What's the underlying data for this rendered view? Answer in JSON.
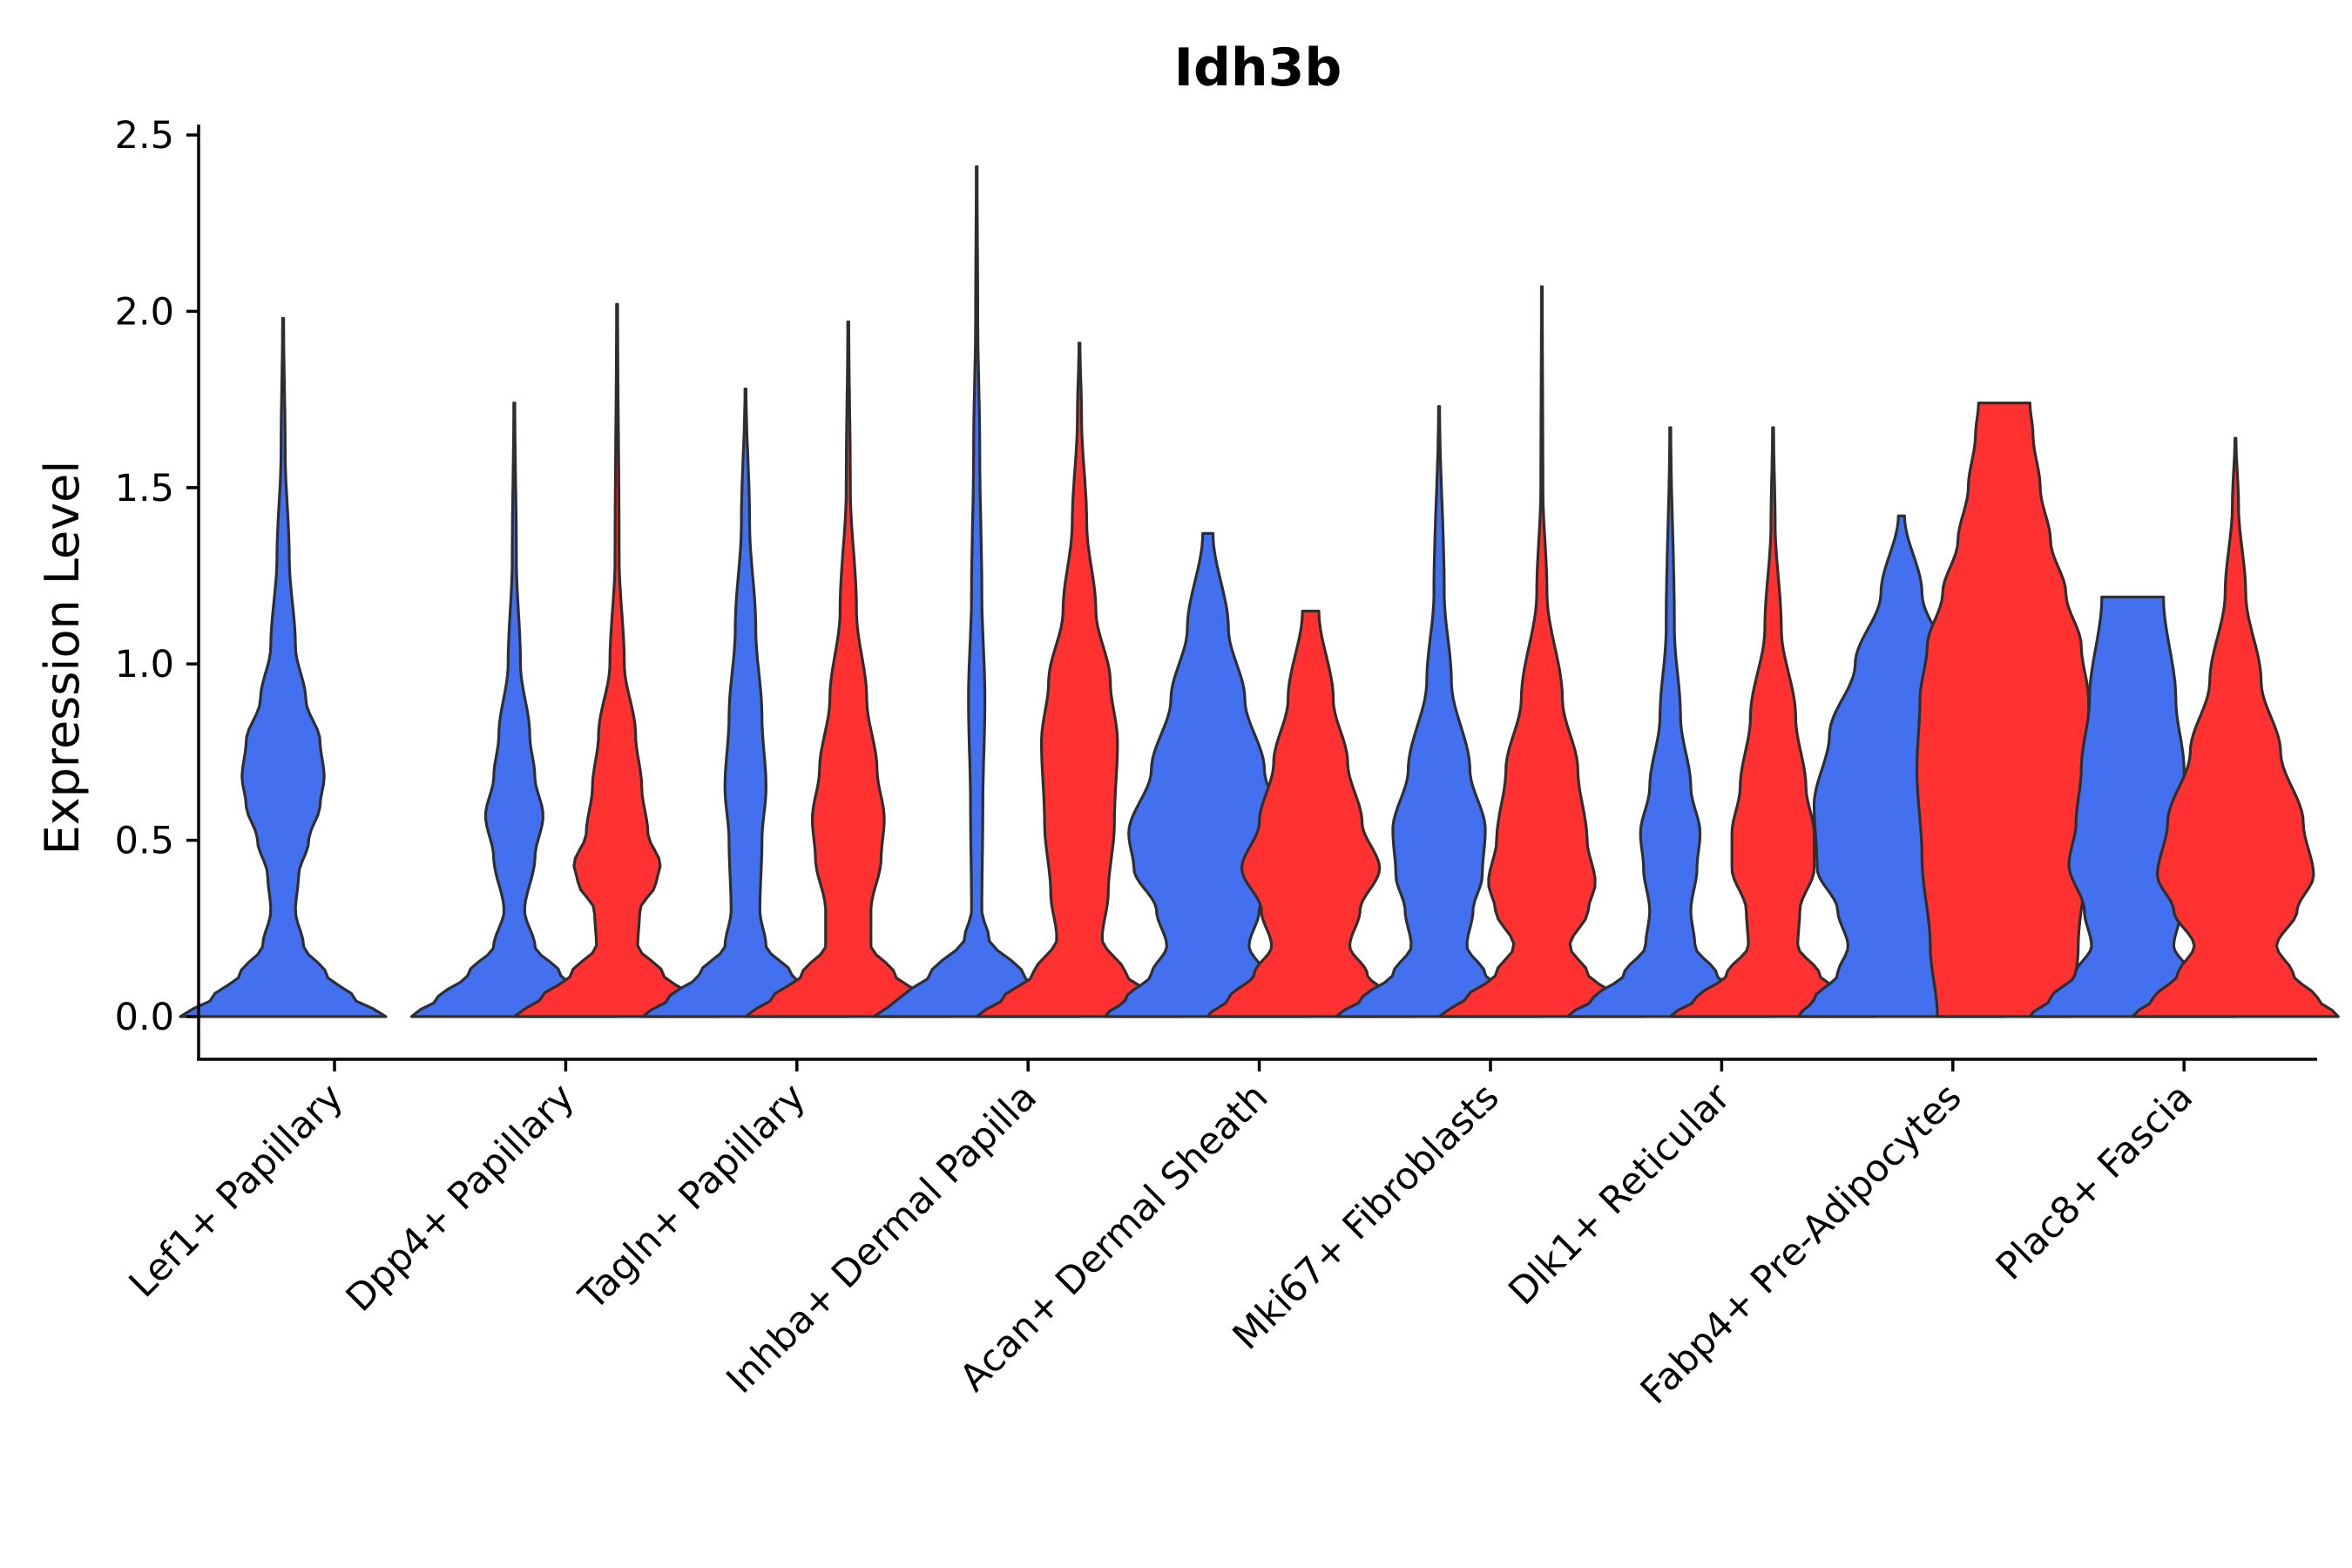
{
  "chart_data": {
    "type": "violin",
    "title": "Idh3b",
    "xlabel": "",
    "ylabel": "Expression Level",
    "ylim": [
      -0.12,
      2.52
    ],
    "yticks": [
      0.0,
      0.5,
      1.0,
      1.5,
      2.0,
      2.5
    ],
    "ytick_labels": [
      "0.0",
      "0.5",
      "1.0",
      "1.5",
      "2.0",
      "2.5"
    ],
    "grid": false,
    "legend": "none",
    "colors": {
      "blue": "#4370EE",
      "red": "#FF3131"
    },
    "categories": [
      "Lef1+ Papillary",
      "Dpp4+ Papillary",
      "Tagln+ Papillary",
      "Inhba+ Dermal Papilla",
      "Acan+ Dermal Sheath",
      "Mki67+ Fibroblasts",
      "Dlk1+ Reticular",
      "Fabp4+ Pre-Adipocytes",
      "Plac8+ Fascia"
    ],
    "violins": [
      {
        "category": "Lef1+ Papillary",
        "group": "blue",
        "max": 1.98,
        "profile": [
          [
            0.0,
            1.0
          ],
          [
            0.05,
            0.7
          ],
          [
            0.12,
            0.42
          ],
          [
            0.2,
            0.2
          ],
          [
            0.3,
            0.12
          ],
          [
            0.4,
            0.15
          ],
          [
            0.5,
            0.25
          ],
          [
            0.6,
            0.36
          ],
          [
            0.68,
            0.4
          ],
          [
            0.78,
            0.36
          ],
          [
            0.9,
            0.22
          ],
          [
            1.05,
            0.12
          ],
          [
            1.3,
            0.06
          ],
          [
            1.6,
            0.02
          ],
          [
            1.98,
            0.005
          ]
        ]
      },
      {
        "category": "Dpp4+ Papillary",
        "group": "blue",
        "max": 1.74,
        "profile": [
          [
            0.0,
            1.0
          ],
          [
            0.05,
            0.75
          ],
          [
            0.12,
            0.45
          ],
          [
            0.2,
            0.2
          ],
          [
            0.3,
            0.1
          ],
          [
            0.45,
            0.2
          ],
          [
            0.57,
            0.28
          ],
          [
            0.68,
            0.2
          ],
          [
            0.8,
            0.15
          ],
          [
            1.0,
            0.06
          ],
          [
            1.3,
            0.02
          ],
          [
            1.74,
            0.005
          ]
        ]
      },
      {
        "category": "Dpp4+ Papillary",
        "group": "red",
        "max": 2.02,
        "profile": [
          [
            0.0,
            1.0
          ],
          [
            0.05,
            0.75
          ],
          [
            0.12,
            0.45
          ],
          [
            0.2,
            0.2
          ],
          [
            0.3,
            0.22
          ],
          [
            0.38,
            0.38
          ],
          [
            0.43,
            0.42
          ],
          [
            0.52,
            0.3
          ],
          [
            0.65,
            0.24
          ],
          [
            0.8,
            0.18
          ],
          [
            1.0,
            0.07
          ],
          [
            1.3,
            0.02
          ],
          [
            2.02,
            0.005
          ]
        ]
      },
      {
        "category": "Tagln+ Papillary",
        "group": "blue",
        "max": 1.78,
        "profile": [
          [
            0.0,
            1.0
          ],
          [
            0.05,
            0.75
          ],
          [
            0.12,
            0.45
          ],
          [
            0.2,
            0.2
          ],
          [
            0.3,
            0.14
          ],
          [
            0.5,
            0.16
          ],
          [
            0.65,
            0.2
          ],
          [
            0.85,
            0.16
          ],
          [
            1.1,
            0.1
          ],
          [
            1.4,
            0.04
          ],
          [
            1.78,
            0.005
          ]
        ]
      },
      {
        "category": "Tagln+ Papillary",
        "group": "red",
        "max": 1.97,
        "profile": [
          [
            0.0,
            1.0
          ],
          [
            0.05,
            0.75
          ],
          [
            0.12,
            0.45
          ],
          [
            0.2,
            0.22
          ],
          [
            0.3,
            0.22
          ],
          [
            0.45,
            0.32
          ],
          [
            0.56,
            0.35
          ],
          [
            0.7,
            0.28
          ],
          [
            0.9,
            0.18
          ],
          [
            1.15,
            0.08
          ],
          [
            1.5,
            0.02
          ],
          [
            1.97,
            0.005
          ]
        ]
      },
      {
        "category": "Inhba+ Dermal Papilla",
        "group": "blue",
        "max": 2.41,
        "profile": [
          [
            0.0,
            1.0
          ],
          [
            0.05,
            0.75
          ],
          [
            0.12,
            0.45
          ],
          [
            0.22,
            0.12
          ],
          [
            0.3,
            0.05
          ],
          [
            0.6,
            0.06
          ],
          [
            0.9,
            0.08
          ],
          [
            1.2,
            0.05
          ],
          [
            1.6,
            0.03
          ],
          [
            2.0,
            0.01
          ],
          [
            2.41,
            0.004
          ]
        ]
      },
      {
        "category": "Inhba+ Dermal Papilla",
        "group": "red",
        "max": 1.91,
        "profile": [
          [
            0.0,
            1.0
          ],
          [
            0.05,
            0.75
          ],
          [
            0.12,
            0.45
          ],
          [
            0.22,
            0.22
          ],
          [
            0.35,
            0.28
          ],
          [
            0.55,
            0.34
          ],
          [
            0.78,
            0.37
          ],
          [
            0.95,
            0.3
          ],
          [
            1.15,
            0.16
          ],
          [
            1.4,
            0.07
          ],
          [
            1.7,
            0.02
          ],
          [
            1.91,
            0.005
          ]
        ]
      },
      {
        "category": "Acan+ Dermal Sheath",
        "group": "blue",
        "max": 1.37,
        "profile": [
          [
            0.0,
            1.0
          ],
          [
            0.05,
            0.8
          ],
          [
            0.12,
            0.55
          ],
          [
            0.2,
            0.4
          ],
          [
            0.3,
            0.5
          ],
          [
            0.42,
            0.72
          ],
          [
            0.52,
            0.77
          ],
          [
            0.7,
            0.55
          ],
          [
            0.9,
            0.36
          ],
          [
            1.1,
            0.2
          ],
          [
            1.37,
            0.05
          ]
        ]
      },
      {
        "category": "Acan+ Dermal Sheath",
        "group": "red",
        "max": 1.15,
        "profile": [
          [
            0.0,
            1.0
          ],
          [
            0.05,
            0.8
          ],
          [
            0.12,
            0.55
          ],
          [
            0.2,
            0.38
          ],
          [
            0.3,
            0.48
          ],
          [
            0.42,
            0.67
          ],
          [
            0.55,
            0.5
          ],
          [
            0.72,
            0.36
          ],
          [
            0.9,
            0.22
          ],
          [
            1.15,
            0.08
          ]
        ]
      },
      {
        "category": "Mki67+ Fibroblasts",
        "group": "blue",
        "max": 1.73,
        "profile": [
          [
            0.0,
            1.0
          ],
          [
            0.05,
            0.75
          ],
          [
            0.12,
            0.45
          ],
          [
            0.2,
            0.27
          ],
          [
            0.3,
            0.33
          ],
          [
            0.4,
            0.42
          ],
          [
            0.53,
            0.45
          ],
          [
            0.7,
            0.3
          ],
          [
            0.95,
            0.12
          ],
          [
            1.2,
            0.05
          ],
          [
            1.73,
            0.005
          ]
        ]
      },
      {
        "category": "Mki67+ Fibroblasts",
        "group": "red",
        "max": 2.07,
        "profile": [
          [
            0.0,
            1.0
          ],
          [
            0.05,
            0.75
          ],
          [
            0.12,
            0.45
          ],
          [
            0.2,
            0.27
          ],
          [
            0.3,
            0.45
          ],
          [
            0.38,
            0.52
          ],
          [
            0.5,
            0.44
          ],
          [
            0.7,
            0.35
          ],
          [
            0.9,
            0.2
          ],
          [
            1.2,
            0.05
          ],
          [
            1.5,
            0.01
          ],
          [
            2.07,
            0.004
          ]
        ]
      },
      {
        "category": "Dlk1+ Reticular",
        "group": "blue",
        "max": 1.67,
        "profile": [
          [
            0.0,
            1.0
          ],
          [
            0.05,
            0.75
          ],
          [
            0.12,
            0.45
          ],
          [
            0.2,
            0.24
          ],
          [
            0.3,
            0.2
          ],
          [
            0.42,
            0.26
          ],
          [
            0.52,
            0.29
          ],
          [
            0.65,
            0.2
          ],
          [
            0.85,
            0.1
          ],
          [
            1.1,
            0.04
          ],
          [
            1.67,
            0.005
          ]
        ]
      },
      {
        "category": "Dlk1+ Reticular",
        "group": "red",
        "max": 1.67,
        "profile": [
          [
            0.0,
            1.0
          ],
          [
            0.05,
            0.75
          ],
          [
            0.12,
            0.45
          ],
          [
            0.2,
            0.24
          ],
          [
            0.3,
            0.26
          ],
          [
            0.42,
            0.4
          ],
          [
            0.52,
            0.4
          ],
          [
            0.65,
            0.32
          ],
          [
            0.85,
            0.22
          ],
          [
            1.1,
            0.08
          ],
          [
            1.4,
            0.02
          ],
          [
            1.67,
            0.005
          ]
        ]
      },
      {
        "category": "Fabp4+ Pre-Adipocytes",
        "group": "blue",
        "max": 1.42,
        "profile": [
          [
            0.0,
            1.0
          ],
          [
            0.05,
            0.85
          ],
          [
            0.12,
            0.62
          ],
          [
            0.2,
            0.52
          ],
          [
            0.3,
            0.62
          ],
          [
            0.42,
            0.82
          ],
          [
            0.6,
            0.85
          ],
          [
            0.8,
            0.7
          ],
          [
            1.0,
            0.45
          ],
          [
            1.2,
            0.2
          ],
          [
            1.42,
            0.03
          ]
        ]
      },
      {
        "category": "Fabp4+ Pre-Adipocytes",
        "group": "red",
        "max": 1.74,
        "profile": [
          [
            0.0,
            0.65
          ],
          [
            0.2,
            0.72
          ],
          [
            0.45,
            0.8
          ],
          [
            0.7,
            0.85
          ],
          [
            0.9,
            0.82
          ],
          [
            1.05,
            0.75
          ],
          [
            1.2,
            0.6
          ],
          [
            1.35,
            0.45
          ],
          [
            1.5,
            0.35
          ],
          [
            1.65,
            0.28
          ],
          [
            1.74,
            0.25
          ]
        ]
      },
      {
        "category": "Plac8+ Fascia",
        "group": "blue",
        "max": 1.19,
        "profile": [
          [
            0.0,
            1.0
          ],
          [
            0.05,
            0.8
          ],
          [
            0.12,
            0.56
          ],
          [
            0.2,
            0.4
          ],
          [
            0.3,
            0.47
          ],
          [
            0.43,
            0.62
          ],
          [
            0.55,
            0.55
          ],
          [
            0.7,
            0.5
          ],
          [
            0.9,
            0.42
          ],
          [
            1.19,
            0.3
          ]
        ]
      },
      {
        "category": "Plac8+ Fascia",
        "group": "red",
        "max": 1.64,
        "profile": [
          [
            0.0,
            1.0
          ],
          [
            0.05,
            0.8
          ],
          [
            0.12,
            0.56
          ],
          [
            0.2,
            0.4
          ],
          [
            0.3,
            0.6
          ],
          [
            0.4,
            0.76
          ],
          [
            0.55,
            0.66
          ],
          [
            0.75,
            0.44
          ],
          [
            0.95,
            0.25
          ],
          [
            1.2,
            0.1
          ],
          [
            1.45,
            0.03
          ],
          [
            1.64,
            0.005
          ]
        ]
      }
    ]
  }
}
